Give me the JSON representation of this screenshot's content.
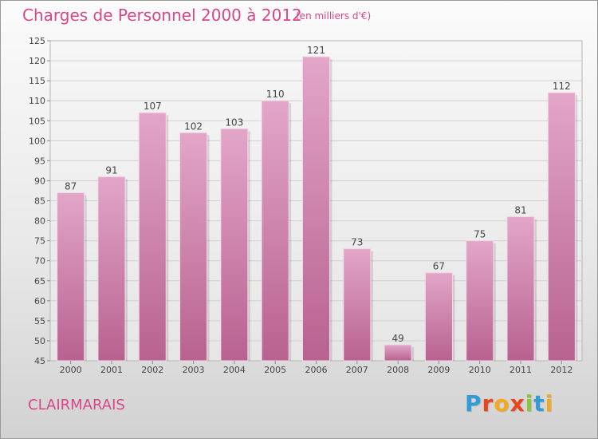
{
  "chart_data": {
    "type": "bar",
    "title": "Charges de Personnel 2000 à 2012",
    "subtitle": "(en milliers d'€)",
    "categories": [
      "2000",
      "2001",
      "2002",
      "2003",
      "2004",
      "2005",
      "2006",
      "2007",
      "2008",
      "2009",
      "2010",
      "2011",
      "2012"
    ],
    "values": [
      87,
      91,
      107,
      102,
      103,
      110,
      121,
      73,
      49,
      67,
      75,
      81,
      112
    ],
    "ylim": [
      45,
      125
    ],
    "yticks": [
      45,
      50,
      55,
      60,
      65,
      70,
      75,
      80,
      85,
      90,
      95,
      100,
      105,
      110,
      115,
      120,
      125
    ],
    "grid": true,
    "bar_color": "#d98bb6"
  },
  "place_name": "CLAIRMARAIS",
  "brand": {
    "letters": [
      "P",
      "r",
      "o",
      "x",
      "i",
      "t",
      "i"
    ],
    "colors": [
      "#2f9bd7",
      "#e8441e",
      "#f4a81b",
      "#e8441e",
      "#8bc53f",
      "#2f9bd7",
      "#f4a81b"
    ]
  }
}
